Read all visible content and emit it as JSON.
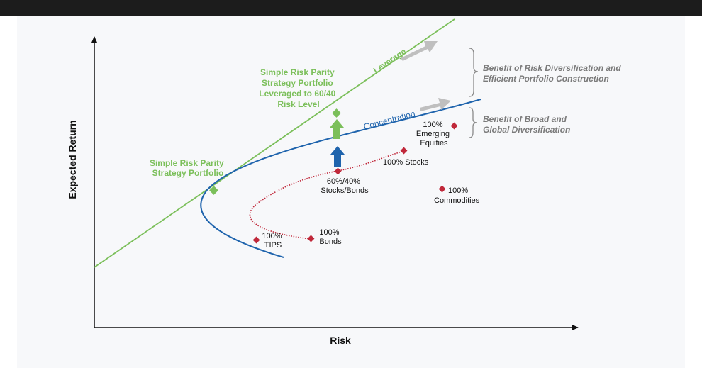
{
  "axes": {
    "x_label": "Risk",
    "y_label": "Expected Return"
  },
  "lines": {
    "leverage_label": "Leverage",
    "concentration_label": "Concentration"
  },
  "portfolios": {
    "simple_rp": [
      "Simple Risk Parity",
      "Strategy Portfolio"
    ],
    "leveraged_rp": [
      "Simple Risk Parity",
      "Strategy Portfolio",
      "Leveraged to 60/40",
      "Risk Level"
    ]
  },
  "assets": {
    "tips": [
      "100%",
      "TIPS"
    ],
    "bonds": [
      "100%",
      "Bonds"
    ],
    "sixty_forty": [
      "60%/40%",
      "Stocks/Bonds"
    ],
    "stocks": [
      "100% Stocks"
    ],
    "emerging": [
      "100%",
      "Emerging",
      "Equities"
    ],
    "commodities": [
      "100%",
      "Commodities"
    ]
  },
  "benefits": {
    "risk_div": [
      "Benefit of Risk Diversification and",
      "Efficient Portfolio Construction"
    ],
    "broad_div": [
      "Benefit of Broad and",
      "Global Diversification"
    ]
  },
  "colors": {
    "leverage_line": "#7bbf5a",
    "concentration_line": "#1f64ad",
    "asset_curve": "#c0283a",
    "marker_red": "#c0283a",
    "marker_green": "#7bbf5a",
    "arrow_blue": "#1f64ad",
    "arrow_gray": "#bfbfbf",
    "brace": "#8a8a8a"
  }
}
